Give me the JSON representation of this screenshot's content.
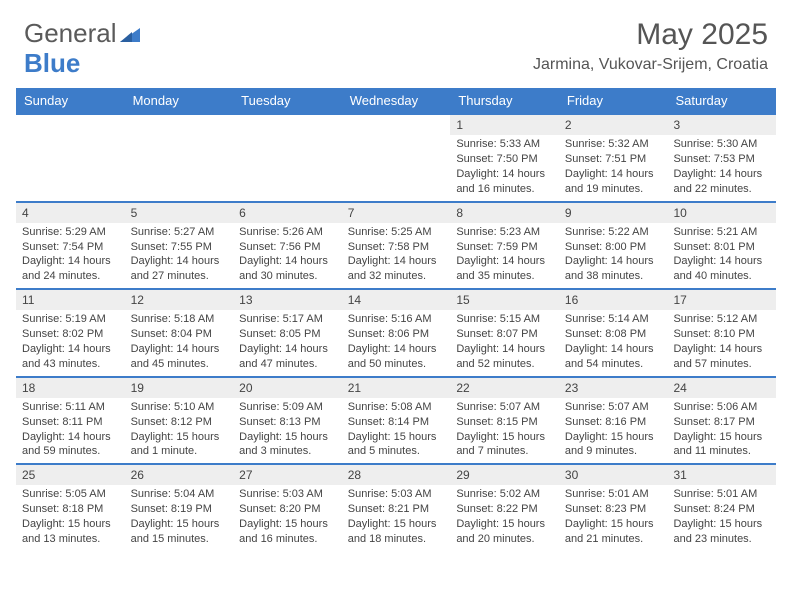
{
  "logo": {
    "part1": "General",
    "part2": "Blue"
  },
  "title": "May 2025",
  "location": "Jarmina, Vukovar-Srijem, Croatia",
  "colors": {
    "header_bg": "#3d7cc9",
    "header_text": "#ffffff",
    "daynum_bg": "#eeeeee",
    "week_border": "#3d7cc9",
    "text": "#444444",
    "logo_gray": "#5a5a5a",
    "logo_blue": "#3d7cc9"
  },
  "day_names": [
    "Sunday",
    "Monday",
    "Tuesday",
    "Wednesday",
    "Thursday",
    "Friday",
    "Saturday"
  ],
  "weeks": [
    [
      {
        "empty": true
      },
      {
        "empty": true
      },
      {
        "empty": true
      },
      {
        "empty": true
      },
      {
        "day": "1",
        "sunrise": "Sunrise: 5:33 AM",
        "sunset": "Sunset: 7:50 PM",
        "daylight": "Daylight: 14 hours and 16 minutes."
      },
      {
        "day": "2",
        "sunrise": "Sunrise: 5:32 AM",
        "sunset": "Sunset: 7:51 PM",
        "daylight": "Daylight: 14 hours and 19 minutes."
      },
      {
        "day": "3",
        "sunrise": "Sunrise: 5:30 AM",
        "sunset": "Sunset: 7:53 PM",
        "daylight": "Daylight: 14 hours and 22 minutes."
      }
    ],
    [
      {
        "day": "4",
        "sunrise": "Sunrise: 5:29 AM",
        "sunset": "Sunset: 7:54 PM",
        "daylight": "Daylight: 14 hours and 24 minutes."
      },
      {
        "day": "5",
        "sunrise": "Sunrise: 5:27 AM",
        "sunset": "Sunset: 7:55 PM",
        "daylight": "Daylight: 14 hours and 27 minutes."
      },
      {
        "day": "6",
        "sunrise": "Sunrise: 5:26 AM",
        "sunset": "Sunset: 7:56 PM",
        "daylight": "Daylight: 14 hours and 30 minutes."
      },
      {
        "day": "7",
        "sunrise": "Sunrise: 5:25 AM",
        "sunset": "Sunset: 7:58 PM",
        "daylight": "Daylight: 14 hours and 32 minutes."
      },
      {
        "day": "8",
        "sunrise": "Sunrise: 5:23 AM",
        "sunset": "Sunset: 7:59 PM",
        "daylight": "Daylight: 14 hours and 35 minutes."
      },
      {
        "day": "9",
        "sunrise": "Sunrise: 5:22 AM",
        "sunset": "Sunset: 8:00 PM",
        "daylight": "Daylight: 14 hours and 38 minutes."
      },
      {
        "day": "10",
        "sunrise": "Sunrise: 5:21 AM",
        "sunset": "Sunset: 8:01 PM",
        "daylight": "Daylight: 14 hours and 40 minutes."
      }
    ],
    [
      {
        "day": "11",
        "sunrise": "Sunrise: 5:19 AM",
        "sunset": "Sunset: 8:02 PM",
        "daylight": "Daylight: 14 hours and 43 minutes."
      },
      {
        "day": "12",
        "sunrise": "Sunrise: 5:18 AM",
        "sunset": "Sunset: 8:04 PM",
        "daylight": "Daylight: 14 hours and 45 minutes."
      },
      {
        "day": "13",
        "sunrise": "Sunrise: 5:17 AM",
        "sunset": "Sunset: 8:05 PM",
        "daylight": "Daylight: 14 hours and 47 minutes."
      },
      {
        "day": "14",
        "sunrise": "Sunrise: 5:16 AM",
        "sunset": "Sunset: 8:06 PM",
        "daylight": "Daylight: 14 hours and 50 minutes."
      },
      {
        "day": "15",
        "sunrise": "Sunrise: 5:15 AM",
        "sunset": "Sunset: 8:07 PM",
        "daylight": "Daylight: 14 hours and 52 minutes."
      },
      {
        "day": "16",
        "sunrise": "Sunrise: 5:14 AM",
        "sunset": "Sunset: 8:08 PM",
        "daylight": "Daylight: 14 hours and 54 minutes."
      },
      {
        "day": "17",
        "sunrise": "Sunrise: 5:12 AM",
        "sunset": "Sunset: 8:10 PM",
        "daylight": "Daylight: 14 hours and 57 minutes."
      }
    ],
    [
      {
        "day": "18",
        "sunrise": "Sunrise: 5:11 AM",
        "sunset": "Sunset: 8:11 PM",
        "daylight": "Daylight: 14 hours and 59 minutes."
      },
      {
        "day": "19",
        "sunrise": "Sunrise: 5:10 AM",
        "sunset": "Sunset: 8:12 PM",
        "daylight": "Daylight: 15 hours and 1 minute."
      },
      {
        "day": "20",
        "sunrise": "Sunrise: 5:09 AM",
        "sunset": "Sunset: 8:13 PM",
        "daylight": "Daylight: 15 hours and 3 minutes."
      },
      {
        "day": "21",
        "sunrise": "Sunrise: 5:08 AM",
        "sunset": "Sunset: 8:14 PM",
        "daylight": "Daylight: 15 hours and 5 minutes."
      },
      {
        "day": "22",
        "sunrise": "Sunrise: 5:07 AM",
        "sunset": "Sunset: 8:15 PM",
        "daylight": "Daylight: 15 hours and 7 minutes."
      },
      {
        "day": "23",
        "sunrise": "Sunrise: 5:07 AM",
        "sunset": "Sunset: 8:16 PM",
        "daylight": "Daylight: 15 hours and 9 minutes."
      },
      {
        "day": "24",
        "sunrise": "Sunrise: 5:06 AM",
        "sunset": "Sunset: 8:17 PM",
        "daylight": "Daylight: 15 hours and 11 minutes."
      }
    ],
    [
      {
        "day": "25",
        "sunrise": "Sunrise: 5:05 AM",
        "sunset": "Sunset: 8:18 PM",
        "daylight": "Daylight: 15 hours and 13 minutes."
      },
      {
        "day": "26",
        "sunrise": "Sunrise: 5:04 AM",
        "sunset": "Sunset: 8:19 PM",
        "daylight": "Daylight: 15 hours and 15 minutes."
      },
      {
        "day": "27",
        "sunrise": "Sunrise: 5:03 AM",
        "sunset": "Sunset: 8:20 PM",
        "daylight": "Daylight: 15 hours and 16 minutes."
      },
      {
        "day": "28",
        "sunrise": "Sunrise: 5:03 AM",
        "sunset": "Sunset: 8:21 PM",
        "daylight": "Daylight: 15 hours and 18 minutes."
      },
      {
        "day": "29",
        "sunrise": "Sunrise: 5:02 AM",
        "sunset": "Sunset: 8:22 PM",
        "daylight": "Daylight: 15 hours and 20 minutes."
      },
      {
        "day": "30",
        "sunrise": "Sunrise: 5:01 AM",
        "sunset": "Sunset: 8:23 PM",
        "daylight": "Daylight: 15 hours and 21 minutes."
      },
      {
        "day": "31",
        "sunrise": "Sunrise: 5:01 AM",
        "sunset": "Sunset: 8:24 PM",
        "daylight": "Daylight: 15 hours and 23 minutes."
      }
    ]
  ]
}
